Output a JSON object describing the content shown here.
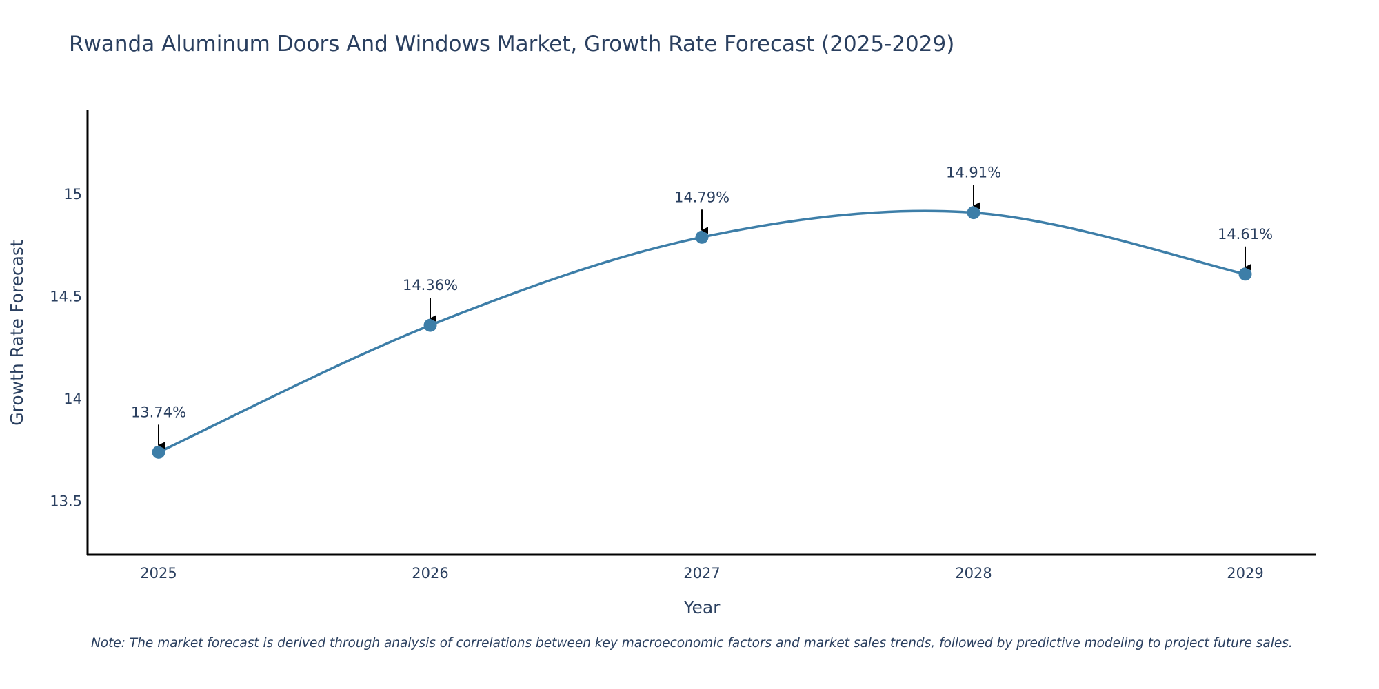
{
  "chart_data": {
    "type": "line",
    "title": "Rwanda Aluminum Doors And Windows Market, Growth Rate Forecast (2025-2029)",
    "xlabel": "Year",
    "ylabel": "Growth Rate Forecast",
    "categories": [
      "2025",
      "2026",
      "2027",
      "2028",
      "2029"
    ],
    "series": [
      {
        "name": "Growth Rate Forecast",
        "values": [
          13.74,
          14.36,
          14.79,
          14.91,
          14.61
        ],
        "labels": [
          "13.74%",
          "14.36%",
          "14.79%",
          "14.91%",
          "14.61%"
        ]
      }
    ],
    "ylim": [
      13.24,
      15.41
    ],
    "yticks": [
      13.5,
      14,
      14.5,
      15
    ],
    "ytick_labels": [
      "13.5",
      "14",
      "14.5",
      "15"
    ],
    "grid": false,
    "line_color": "#3d7ea8",
    "line_shape": "spline",
    "annotations": "arrow pointing to each data point with percentage label",
    "note": "Note: The market forecast is derived through analysis of correlations between key macroeconomic factors and market sales trends, followed by predictive modeling to project future sales."
  }
}
